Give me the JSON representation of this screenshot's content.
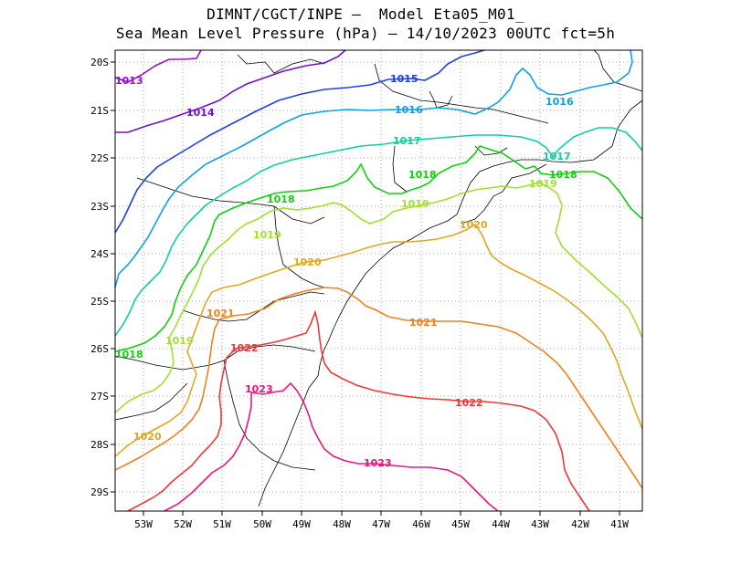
{
  "header": {
    "line1": "DIMNT/CGCT/INPE –  Model Eta05_M01_",
    "line2": "Sea Mean Level Pressure (hPa) – 14/10/2023 00UTC fct=5h"
  },
  "axes": {
    "lon_labels": [
      "53W",
      "52W",
      "51W",
      "50W",
      "49W",
      "48W",
      "47W",
      "46W",
      "45W",
      "44W",
      "43W",
      "42W",
      "41W"
    ],
    "lat_labels": [
      "20S",
      "21S",
      "22S",
      "23S",
      "24S",
      "25S",
      "26S",
      "27S",
      "28S",
      "29S"
    ]
  },
  "isobars": [
    {
      "value": "1013",
      "color": "#9a10c8",
      "labels": [
        "1013"
      ]
    },
    {
      "value": "1014",
      "color": "#7010c8",
      "labels": [
        "1014"
      ]
    },
    {
      "value": "1015",
      "color": "#2040e0",
      "labels": [
        "1015"
      ]
    },
    {
      "value": "1016",
      "color": "#10a0e8",
      "labels": [
        "1016",
        "1016"
      ]
    },
    {
      "value": "1017",
      "color": "#10d0a0",
      "labels": [
        "1017",
        "1017"
      ]
    },
    {
      "value": "1018",
      "color": "#10d010",
      "labels": [
        "1018",
        "1018",
        "1018",
        "1018"
      ]
    },
    {
      "value": "1019",
      "color": "#a0e030",
      "labels": [
        "1019",
        "1019",
        "1019",
        "1019"
      ]
    },
    {
      "value": "1020",
      "color": "#e0a820",
      "labels": [
        "1020",
        "1020",
        "1020"
      ]
    },
    {
      "value": "1021",
      "color": "#f08020",
      "labels": [
        "1021",
        "1021"
      ]
    },
    {
      "value": "1022",
      "color": "#f03838",
      "labels": [
        "1022",
        "1022"
      ]
    },
    {
      "value": "1023",
      "color": "#e81880",
      "labels": [
        "1023",
        "1023"
      ]
    }
  ]
}
